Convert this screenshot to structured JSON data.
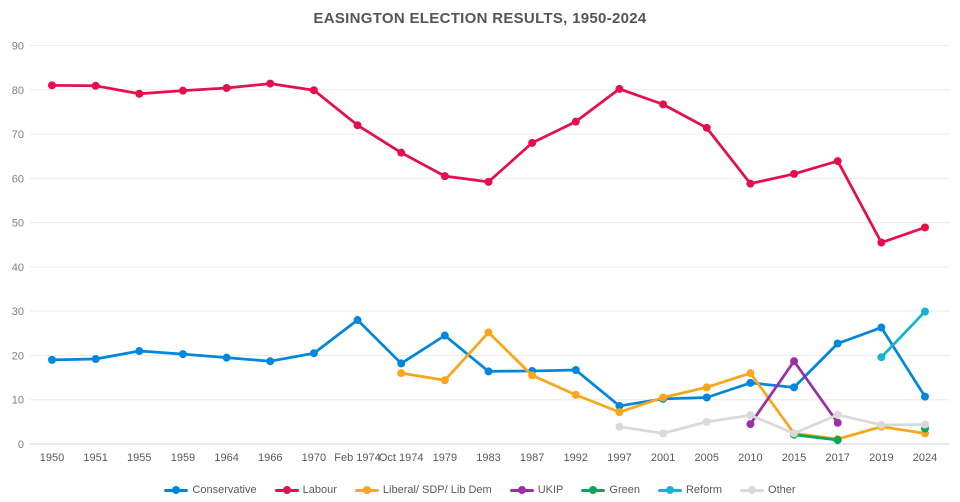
{
  "chart_data": {
    "type": "line",
    "title": "EASINGTON ELECTION RESULTS, 1950-2024",
    "xlabel": "",
    "ylabel": "",
    "ylim": [
      0,
      90
    ],
    "ytick_step": 10,
    "grid": "horizontal",
    "legend_position": "bottom",
    "categories": [
      "1950",
      "1951",
      "1955",
      "1959",
      "1964",
      "1966",
      "1970",
      "Feb 1974",
      "Oct 1974",
      "1979",
      "1983",
      "1987",
      "1992",
      "1997",
      "2001",
      "2005",
      "2010",
      "2015",
      "2017",
      "2019",
      "2024"
    ],
    "series": [
      {
        "name": "Conservative",
        "color": "#0087DC",
        "values": [
          19,
          19.2,
          21,
          20.3,
          19.5,
          18.7,
          20.5,
          28,
          18.2,
          24.5,
          16.4,
          16.5,
          16.7,
          8.6,
          10.2,
          10.5,
          13.8,
          12.8,
          22.7,
          26.3,
          10.7
        ]
      },
      {
        "name": "Labour",
        "color": "#E4104E",
        "values": [
          81,
          80.9,
          79.1,
          79.8,
          80.4,
          81.4,
          79.9,
          72,
          65.8,
          60.5,
          59.2,
          68,
          72.8,
          80.2,
          76.7,
          71.4,
          58.8,
          61,
          63.9,
          45.5,
          48.9
        ]
      },
      {
        "name": "Liberal/ SDP/ Lib Dem",
        "color": "#FAA61A",
        "values": [
          null,
          null,
          null,
          null,
          null,
          null,
          null,
          null,
          16,
          14.4,
          25.2,
          15.5,
          11.1,
          7.2,
          10.5,
          12.8,
          16,
          2.4,
          1.1,
          3.9,
          2.4
        ]
      },
      {
        "name": "UKIP",
        "color": "#9B2FA5",
        "values": [
          null,
          null,
          null,
          null,
          null,
          null,
          null,
          null,
          null,
          null,
          null,
          null,
          null,
          null,
          null,
          null,
          4.5,
          18.7,
          4.8,
          null,
          null
        ]
      },
      {
        "name": "Green",
        "color": "#02A95B",
        "values": [
          null,
          null,
          null,
          null,
          null,
          null,
          null,
          null,
          null,
          null,
          null,
          null,
          null,
          null,
          null,
          null,
          null,
          2.1,
          0.9,
          null,
          3.5
        ]
      },
      {
        "name": "Reform",
        "color": "#12B6CF",
        "values": [
          null,
          null,
          null,
          null,
          null,
          null,
          null,
          null,
          null,
          null,
          null,
          null,
          null,
          null,
          null,
          null,
          null,
          null,
          null,
          19.6,
          29.9
        ]
      },
      {
        "name": "Other",
        "color": "#D9D9D9",
        "values": [
          null,
          null,
          null,
          null,
          null,
          null,
          null,
          null,
          null,
          null,
          null,
          null,
          null,
          3.9,
          2.4,
          5,
          6.5,
          2.4,
          6.6,
          4.3,
          4.4
        ]
      }
    ],
    "axis_colors": {
      "y_tick": "#7f7f7f",
      "x_tick": "#595959",
      "gridline": "#ececec",
      "zeroline": "#d2d2d2"
    }
  }
}
